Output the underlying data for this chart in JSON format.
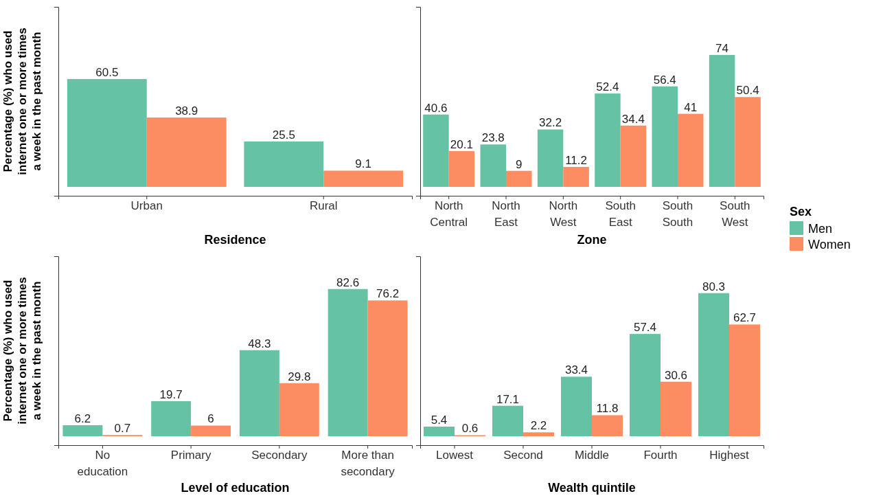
{
  "chart_data": [
    {
      "type": "bar",
      "xlabel": "Residence",
      "ylabel": "Percentage (%) who used internet one or more times a week in the past month",
      "categories": [
        "Urban",
        "Rural"
      ],
      "series": [
        {
          "name": "Men",
          "color": "#66c2a5",
          "values": [
            60.5,
            25.5
          ]
        },
        {
          "name": "Women",
          "color": "#fc8d62",
          "values": [
            38.9,
            9.1
          ]
        }
      ],
      "ylim": [
        -5,
        101
      ],
      "tick_labels": "x",
      "data_labels": true,
      "legend": "right",
      "legend_title": "Sex"
    },
    {
      "type": "bar",
      "xlabel": "Zone",
      "categories": [
        "North Central",
        "North East",
        "North West",
        "South East",
        "South South",
        "South West"
      ],
      "series": [
        {
          "color": "#66c2a5",
          "values": [
            40.6,
            23.8,
            32.2,
            52.4,
            56.4,
            74
          ]
        },
        {
          "color": "#fc8d62",
          "values": [
            20.1,
            9,
            11.2,
            34.4,
            41,
            50.4
          ]
        }
      ],
      "ylim": [
        -5,
        101
      ],
      "tick_labels": "x",
      "data_labels": true
    },
    {
      "type": "bar",
      "xlabel": "Level of education",
      "ylabel": "Percentage (%) who used internet one or more times a week in the past month",
      "categories": [
        "No education",
        "Primary",
        "Secondary",
        "More than secondary"
      ],
      "series": [
        {
          "color": "#66c2a5",
          "values": [
            6.2,
            19.7,
            48.3,
            82.6
          ]
        },
        {
          "color": "#fc8d62",
          "values": [
            0.7,
            6,
            29.8,
            76.2
          ]
        }
      ],
      "ylim": [
        -5,
        101
      ],
      "tick_labels": "x",
      "data_labels": true
    },
    {
      "type": "bar",
      "xlabel": "Wealth quintile",
      "categories": [
        "Lowest",
        "Second",
        "Middle",
        "Fourth",
        "Highest"
      ],
      "series": [
        {
          "color": "#66c2a5",
          "values": [
            5.4,
            17.1,
            33.4,
            57.4,
            80.3
          ]
        },
        {
          "color": "#fc8d62",
          "values": [
            0.6,
            2.2,
            11.8,
            30.6,
            62.7
          ]
        }
      ],
      "ylim": [
        -5,
        101
      ],
      "tick_labels": "x",
      "data_labels": true
    }
  ]
}
